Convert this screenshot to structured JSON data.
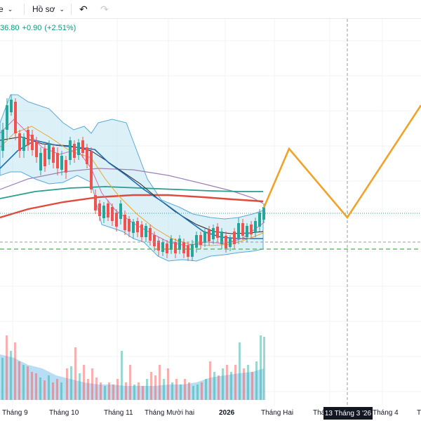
{
  "toolbar": {
    "partial_label": "e",
    "profile_label": "Hồ sơ",
    "undo_icon": "undo-icon",
    "redo_icon": "redo-icon"
  },
  "price_header": {
    "last": "36.80",
    "change": "+0.90",
    "change_pct": "(+2.51%)",
    "color": "#089981"
  },
  "crosshair": {
    "date_label": "13 Tháng 3 '26"
  },
  "colors": {
    "up": "#26a69a",
    "down": "#ef5350",
    "forecast": "#f0a32b",
    "ma_red": "#e04a3c",
    "ma_teal": "#2a9d8f",
    "bb_fill": "#bfe3f2",
    "volume_area": "#9fd3f2"
  },
  "chart_data": {
    "type": "candlestick",
    "x_labels": [
      "Tháng 9",
      "Tháng 10",
      "Tháng 11",
      "Tháng Mười hai",
      "2026",
      "Tháng Hai",
      "Tháng 3",
      "Tháng 4",
      "T"
    ],
    "price_trend": [
      36.4,
      37.8,
      37.2,
      37.0,
      36.9,
      36.2,
      35.9,
      35.6,
      35.4,
      35.3,
      35.2,
      35.5,
      35.8,
      36.8
    ],
    "forecast_path": [
      36.8,
      38.2,
      36.7,
      38.9
    ],
    "moving_averages": [
      "red-ma",
      "teal-ma",
      "black-ma",
      "purple-ma",
      "orange-ma"
    ],
    "grid": true,
    "legend": "none"
  }
}
